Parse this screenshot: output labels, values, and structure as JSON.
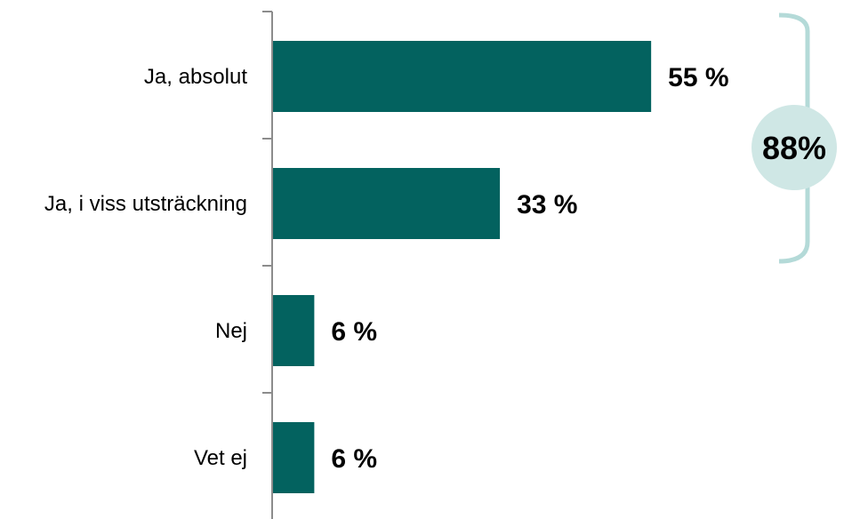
{
  "chart_data": {
    "type": "bar",
    "orientation": "horizontal",
    "categories": [
      "Ja, absolut",
      "Ja, i viss utsträckning",
      "Nej",
      "Vet ej"
    ],
    "values": [
      55,
      33,
      6,
      6
    ],
    "value_labels": [
      "55 %",
      "33 %",
      "6 %",
      "6 %"
    ],
    "xlim": [
      0,
      100
    ],
    "grid": false,
    "legend": "none",
    "bar_color": "#03625F",
    "axis_color": "#8C8C8C",
    "bracket": {
      "covers_categories": [
        "Ja, absolut",
        "Ja, i viss utsträckning"
      ],
      "label": "88%",
      "circle_color": "#CFE7E5",
      "bracket_color": "#B4DAD8"
    }
  }
}
